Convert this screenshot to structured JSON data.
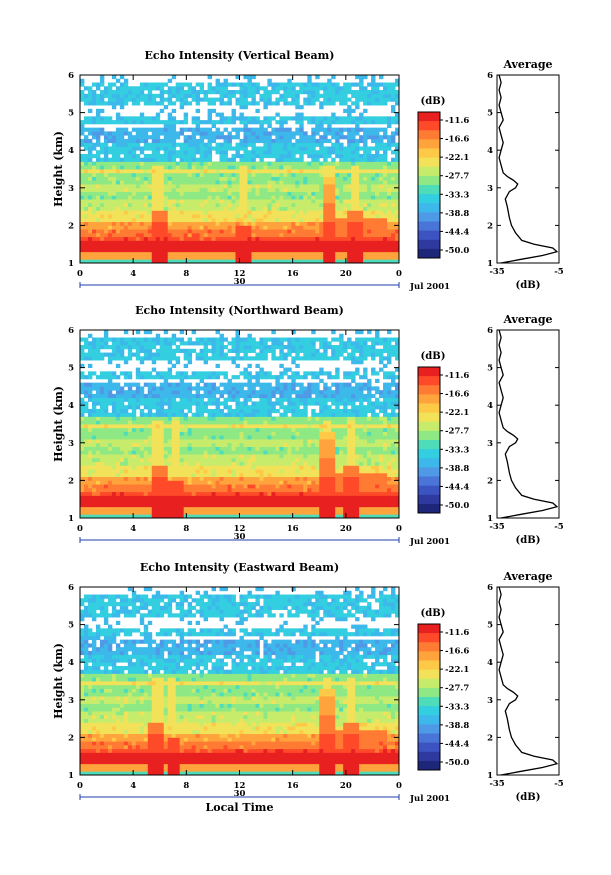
{
  "figure": {
    "x_axis_label": "Local Time",
    "date_label": "Jul 2001",
    "day_label": "30",
    "average_title": "Average",
    "unit_label": "(dB)",
    "colorbar_unit": "(dB)"
  },
  "colorbar": {
    "tick_labels": [
      "-11.6",
      "-16.6",
      "-22.1",
      "-27.7",
      "-33.3",
      "-38.8",
      "-44.4",
      "-50.0"
    ],
    "colors": [
      "#e82020",
      "#ff4a2a",
      "#ff7a33",
      "#ffa33d",
      "#ffc948",
      "#f2e25a",
      "#c7ec6c",
      "#8ee884",
      "#4fdcb8",
      "#33cfe0",
      "#3cb8ea",
      "#4f9ae6",
      "#4a74d8",
      "#3c54c2",
      "#2e3aa0",
      "#1e267a"
    ]
  },
  "chart_data": [
    {
      "type": "heatmap",
      "title": "Echo Intensity (Vertical Beam)",
      "xlabel": "",
      "ylabel": "Height (km)",
      "xlim": [
        0,
        24
      ],
      "ylim": [
        1,
        6
      ],
      "x_ticks": [
        "0",
        "4",
        "8",
        "12",
        "16",
        "20",
        "0"
      ],
      "y_ticks": [
        "1",
        "2",
        "3",
        "4",
        "5",
        "6"
      ],
      "spikes": [
        5.9,
        12.3,
        18.7,
        20.7
      ],
      "average_profile": {
        "title": "Average",
        "xlabel": "(dB)",
        "xlim": [
          -35,
          -5
        ],
        "x_ticks": [
          "-35",
          "-5"
        ],
        "y_ticks": [
          "1",
          "2",
          "3",
          "4",
          "5",
          "6"
        ],
        "height": [
          1.0,
          1.1,
          1.2,
          1.3,
          1.4,
          1.5,
          1.6,
          1.8,
          2.0,
          2.2,
          2.5,
          2.7,
          2.9,
          3.0,
          3.1,
          3.2,
          3.3,
          3.4,
          3.6,
          3.8,
          4.0,
          4.2,
          4.4,
          4.6,
          4.8,
          5.0,
          5.2,
          5.4,
          5.6,
          5.8,
          6.0
        ],
        "value": [
          -33,
          -23,
          -13,
          -6,
          -8,
          -17,
          -23,
          -26,
          -28,
          -29,
          -30,
          -31,
          -29,
          -26,
          -25,
          -27,
          -30,
          -32,
          -33,
          -34,
          -33,
          -32,
          -33,
          -34,
          -32,
          -33,
          -34,
          -33,
          -34,
          -33,
          -34
        ]
      }
    },
    {
      "type": "heatmap",
      "title": "Echo Intensity (Northward Beam)",
      "xlabel": "",
      "ylabel": "Height (km)",
      "xlim": [
        0,
        24
      ],
      "ylim": [
        1,
        6
      ],
      "x_ticks": [
        "0",
        "4",
        "8",
        "12",
        "16",
        "20",
        "0"
      ],
      "y_ticks": [
        "1",
        "2",
        "3",
        "4",
        "5",
        "6"
      ],
      "spikes": [
        5.9,
        7.2,
        18.6,
        20.5
      ],
      "average_profile": {
        "title": "Average",
        "xlabel": "(dB)",
        "xlim": [
          -35,
          -5
        ],
        "x_ticks": [
          "-35",
          "-5"
        ],
        "y_ticks": [
          "1",
          "2",
          "3",
          "4",
          "5",
          "6"
        ],
        "height": [
          1.0,
          1.1,
          1.2,
          1.3,
          1.4,
          1.5,
          1.6,
          1.8,
          2.0,
          2.2,
          2.5,
          2.7,
          2.9,
          3.0,
          3.1,
          3.2,
          3.3,
          3.4,
          3.6,
          3.8,
          4.0,
          4.2,
          4.4,
          4.6,
          4.8,
          5.0,
          5.2,
          5.4,
          5.6,
          5.8,
          6.0
        ],
        "value": [
          -33,
          -23,
          -13,
          -6,
          -8,
          -17,
          -23,
          -26,
          -28,
          -29,
          -30,
          -31,
          -29,
          -26,
          -25,
          -27,
          -30,
          -32,
          -33,
          -34,
          -33,
          -32,
          -33,
          -34,
          -32,
          -33,
          -34,
          -33,
          -34,
          -33,
          -34
        ]
      }
    },
    {
      "type": "heatmap",
      "title": "Echo Intensity (Eastward Beam)",
      "xlabel": "Local Time",
      "ylabel": "Height (km)",
      "xlim": [
        0,
        24
      ],
      "ylim": [
        1,
        6
      ],
      "x_ticks": [
        "0",
        "4",
        "8",
        "12",
        "16",
        "20",
        "0"
      ],
      "y_ticks": [
        "1",
        "2",
        "3",
        "4",
        "5",
        "6"
      ],
      "spikes": [
        5.8,
        7.0,
        18.6,
        20.5
      ],
      "average_profile": {
        "title": "Average",
        "xlabel": "(dB)",
        "xlim": [
          -35,
          -5
        ],
        "x_ticks": [
          "-35",
          "-5"
        ],
        "y_ticks": [
          "1",
          "2",
          "3",
          "4",
          "5",
          "6"
        ],
        "height": [
          1.0,
          1.1,
          1.2,
          1.3,
          1.4,
          1.5,
          1.6,
          1.8,
          2.0,
          2.2,
          2.5,
          2.7,
          2.9,
          3.0,
          3.1,
          3.2,
          3.3,
          3.4,
          3.6,
          3.8,
          4.0,
          4.2,
          4.4,
          4.6,
          4.8,
          5.0,
          5.2,
          5.4,
          5.6,
          5.8,
          6.0
        ],
        "value": [
          -33,
          -23,
          -13,
          -6,
          -8,
          -17,
          -23,
          -26,
          -28,
          -29,
          -30,
          -31,
          -29,
          -26,
          -25,
          -27,
          -30,
          -32,
          -33,
          -34,
          -33,
          -32,
          -33,
          -34,
          -32,
          -33,
          -34,
          -33,
          -34,
          -33,
          -34
        ]
      }
    }
  ]
}
